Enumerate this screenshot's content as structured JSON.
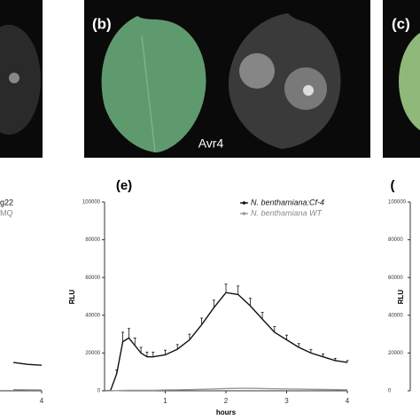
{
  "panels": {
    "b": {
      "label": "(b)",
      "caption": "Avr4"
    },
    "c": {
      "label": "(c)"
    }
  },
  "chart_data": [
    {
      "type": "line",
      "legend": [
        "g22",
        "MQ"
      ],
      "xlim": [
        -3.5,
        4
      ],
      "ylim": [
        0,
        100000
      ],
      "xticks": [
        4
      ],
      "x": [
        3,
        3.5,
        4
      ],
      "series": [
        {
          "name": "g22",
          "color": "#111111",
          "values": [
            15000,
            14000,
            13500
          ]
        },
        {
          "name": "MQ",
          "color": "#999999",
          "values": [
            600,
            500,
            400
          ]
        }
      ]
    },
    {
      "type": "line",
      "title": "(e)",
      "xlabel": "hours",
      "ylabel": "RLU",
      "xlim": [
        0,
        4
      ],
      "ylim": [
        0,
        100000
      ],
      "xticks": [
        1,
        2,
        3,
        4
      ],
      "yticks": [
        0,
        20000,
        40000,
        60000,
        80000,
        100000
      ],
      "x": [
        0,
        0.1,
        0.2,
        0.3,
        0.4,
        0.5,
        0.6,
        0.7,
        0.8,
        1.0,
        1.2,
        1.4,
        1.6,
        1.8,
        2.0,
        2.2,
        2.4,
        2.6,
        2.8,
        3.0,
        3.2,
        3.4,
        3.6,
        3.8,
        4.0
      ],
      "series": [
        {
          "name": "N. benthamiana:Cf-4",
          "color": "#111111",
          "values": [
            0,
            200,
            9000,
            26000,
            28000,
            24000,
            20000,
            18000,
            18000,
            19000,
            22000,
            27000,
            35000,
            44000,
            52000,
            51000,
            45000,
            38000,
            31000,
            27000,
            23000,
            20000,
            18000,
            16000,
            15000
          ],
          "errors": [
            0,
            100,
            2000,
            5000,
            5000,
            4000,
            3000,
            2500,
            2500,
            2500,
            2500,
            3000,
            3500,
            4000,
            4500,
            4500,
            4000,
            3500,
            3000,
            2500,
            2000,
            1800,
            1500,
            1200,
            1000
          ]
        },
        {
          "name": "N. benthamiana  WT",
          "color": "#999999",
          "values": [
            0,
            0,
            100,
            200,
            300,
            300,
            300,
            300,
            300,
            400,
            500,
            600,
            800,
            1000,
            1200,
            1300,
            1300,
            1200,
            1100,
            1000,
            900,
            800,
            700,
            600,
            500
          ]
        }
      ]
    },
    {
      "type": "axis",
      "title": "(",
      "ylabel": "RLU",
      "ylim": [
        0,
        100000
      ],
      "yticks": [
        0,
        20000,
        40000,
        60000,
        80000,
        100000
      ]
    }
  ]
}
